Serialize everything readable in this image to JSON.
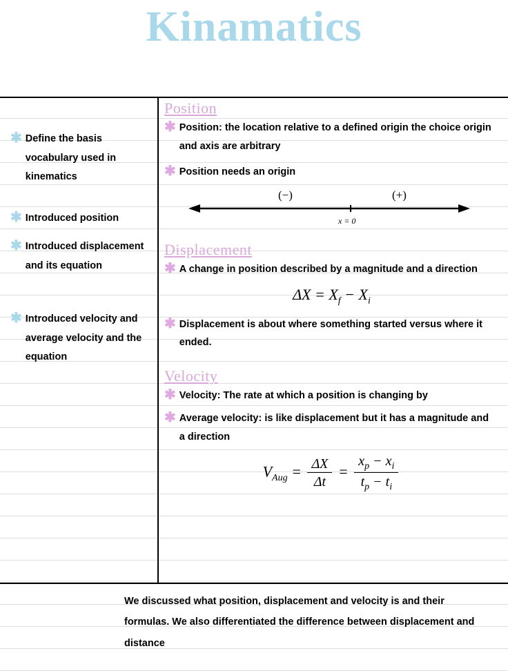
{
  "title": "Kinamatics",
  "left_bullets": [
    "Define the basis vocabulary used in kinematics",
    "Introduced position",
    "Introduced displacement and its equation",
    "Introduced velocity and average velocity and the equation"
  ],
  "left_gaps": [
    32,
    14,
    50,
    0
  ],
  "sections": {
    "position": {
      "heading": "Position",
      "items": [
        "Position: the location relative to a defined origin the choice origin and axis are arbitrary",
        "Position needs an origin"
      ],
      "axis": {
        "neg": "(−)",
        "pos": "(+)",
        "origin": "x = 0"
      }
    },
    "displacement": {
      "heading": "Displacement",
      "items": [
        "A change in position described by a magnitude and a direction",
        "Displacement is about where something started versus where it ended."
      ],
      "eq_lhs": "ΔX",
      "eq_rhs1": "X",
      "eq_sub_f": "f",
      "eq_rhs2": "X",
      "eq_sub_i": "i"
    },
    "velocity": {
      "heading": "Velocity",
      "items": [
        "Velocity: The rate at which a position is changing by",
        "Average velocity: is like displacement but it has a magnitude and a direction"
      ],
      "eq": {
        "V": "V",
        "aug": "Aug",
        "dx": "ΔX",
        "dt": "Δt",
        "xp": "x",
        "p": "p",
        "xi": "x",
        "i": "i",
        "tp": "t",
        "ti": "t"
      }
    }
  },
  "summary": "We discussed what position, displacement and velocity is and their formulas. We also differentiated the difference between displacement and distance",
  "colors": {
    "title_cyan": "#a8d8ea",
    "heading_pink": "#d8a8d8",
    "ast_pink": "#e0a8e0",
    "line_gray": "#dddddd"
  }
}
